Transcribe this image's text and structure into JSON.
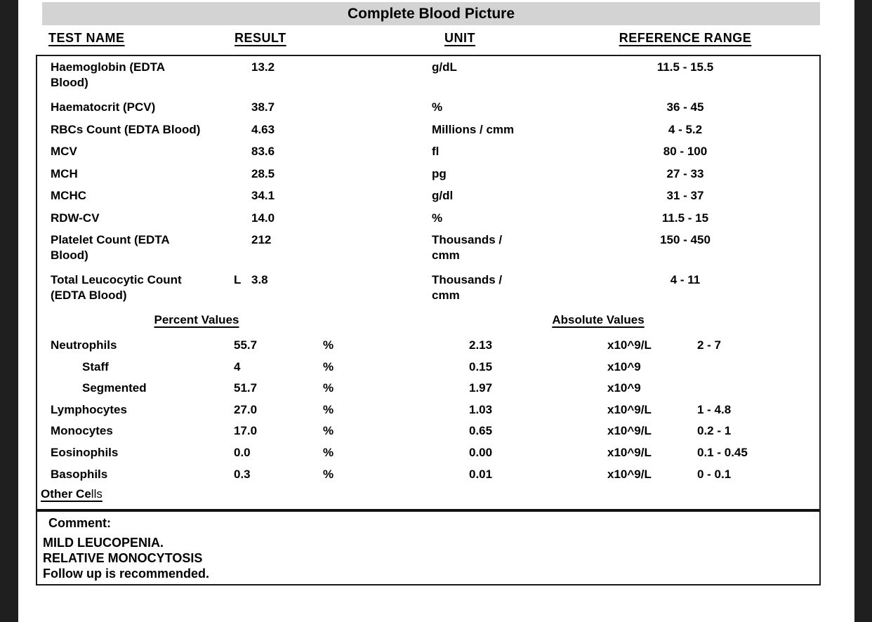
{
  "colors": {
    "side_bars": "#1f1f1f",
    "title_bar_bg": "#d3d3d3",
    "text": "#000000"
  },
  "title": "Complete Blood Picture",
  "column_headers": {
    "test_name": "TEST NAME",
    "result": "RESULT",
    "unit": "UNIT",
    "reference_range": "REFERENCE RANGE"
  },
  "cbc_rows": [
    {
      "name": "Haemoglobin (EDTA\nBlood)",
      "flag": "",
      "result": "13.2",
      "unit": "g/dL",
      "range": "11.5 - 15.5"
    },
    {
      "name": "Haematocrit (PCV)",
      "flag": "",
      "result": "38.7",
      "unit": "%",
      "range": "36 - 45"
    },
    {
      "name": "RBCs Count (EDTA Blood)",
      "flag": "",
      "result": "4.63",
      "unit": "Millions / cmm",
      "range": "4 - 5.2"
    },
    {
      "name": "MCV",
      "flag": "",
      "result": "83.6",
      "unit": "fl",
      "range": "80 - 100"
    },
    {
      "name": "MCH",
      "flag": "",
      "result": "28.5",
      "unit": "pg",
      "range": "27 - 33"
    },
    {
      "name": "MCHC",
      "flag": "",
      "result": "34.1",
      "unit": "g/dl",
      "range": "31 - 37"
    },
    {
      "name": "RDW-CV",
      "flag": "",
      "result": "14.0",
      "unit": "%",
      "range": "11.5 - 15"
    },
    {
      "name": "Platelet Count (EDTA\nBlood)",
      "flag": "",
      "result": "212",
      "unit": "Thousands /\ncmm",
      "range": "150 - 450"
    },
    {
      "name": "Total Leucocytic Count\n(EDTA Blood)",
      "flag": "L",
      "result": "3.8",
      "unit": "Thousands /\ncmm",
      "range": "4 - 11"
    }
  ],
  "section_headers": {
    "percent": "Percent Values",
    "absolute": "Absolute Values"
  },
  "differential_rows": [
    {
      "name": "Neutrophils",
      "indent": false,
      "percent": "55.7",
      "percent_unit": "%",
      "absolute": "2.13",
      "absolute_unit": "x10^9/L",
      "range": "2 - 7"
    },
    {
      "name": "Staff",
      "indent": true,
      "percent": "4",
      "percent_unit": "%",
      "absolute": "0.15",
      "absolute_unit": "x10^9",
      "range": ""
    },
    {
      "name": "Segmented",
      "indent": true,
      "percent": "51.7",
      "percent_unit": "%",
      "absolute": "1.97",
      "absolute_unit": "x10^9",
      "range": ""
    },
    {
      "name": "Lymphocytes",
      "indent": false,
      "percent": "27.0",
      "percent_unit": "%",
      "absolute": "1.03",
      "absolute_unit": "x10^9/L",
      "range": "1 - 4.8"
    },
    {
      "name": "Monocytes",
      "indent": false,
      "percent": "17.0",
      "percent_unit": "%",
      "absolute": "0.65",
      "absolute_unit": "x10^9/L",
      "range": "0.2 - 1"
    },
    {
      "name": "Eosinophils",
      "indent": false,
      "percent": "0.0",
      "percent_unit": "%",
      "absolute": "0.00",
      "absolute_unit": "x10^9/L",
      "range": "0.1 - 0.45"
    },
    {
      "name": "Basophils",
      "indent": false,
      "percent": "0.3",
      "percent_unit": "%",
      "absolute": "0.01",
      "absolute_unit": "x10^9/L",
      "range": "0 - 0.1"
    }
  ],
  "other_cells": {
    "bold_part": "Other Ce",
    "regular_part": "lls"
  },
  "comment": {
    "label": "Comment:",
    "lines": [
      "MILD LEUCOPENIA.",
      "RELATIVE MONOCYTOSIS",
      "Follow up is recommended."
    ]
  }
}
